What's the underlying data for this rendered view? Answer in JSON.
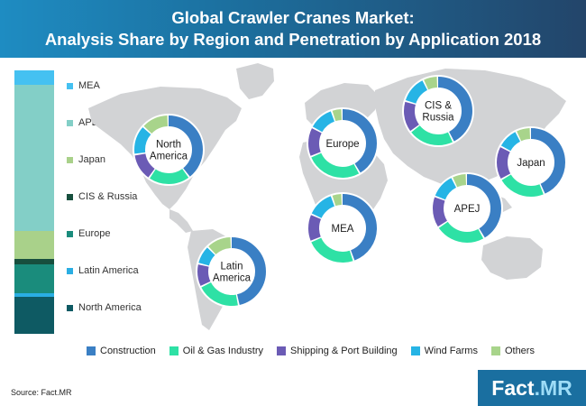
{
  "title_line1": "Global Crawler Cranes Market:",
  "title_line2": "Analysis Share by Region and Penetration by Application 2018",
  "source": "Source: Fact.MR",
  "logo": {
    "part1": "Fact",
    "part2": ".MR"
  },
  "colors": {
    "header_start": "#1e8cc2",
    "header_end": "#23456a",
    "map": "#d2d3d5"
  },
  "chart_data": [
    {
      "type": "bar",
      "stacked": true,
      "orientation": "vertical",
      "categories": [
        "MEA",
        "APEJ",
        "Japan",
        "CIS & Russia",
        "Europe",
        "Latin America",
        "North America"
      ],
      "values": [
        5.5,
        55.5,
        10.5,
        2,
        11,
        1.5,
        14
      ],
      "colors": [
        "#45c1f1",
        "#83cfc7",
        "#a9d18a",
        "#174f3e",
        "#1a8c7c",
        "#2aaee3",
        "#0e5a63"
      ],
      "unit": "%"
    },
    {
      "type": "pie",
      "variant": "donut",
      "categories": [
        "Construction",
        "Oil & Gas Industry",
        "Shipping & Port Building",
        "Wind Farms",
        "Others"
      ],
      "colors": [
        "#3a7fc4",
        "#2ee1a5",
        "#6b5bb5",
        "#26b4e5",
        "#a8d48b"
      ],
      "series": [
        {
          "name": "North America",
          "values": [
            40,
            20,
            13,
            14,
            13
          ]
        },
        {
          "name": "Latin America",
          "values": [
            47,
            21,
            11,
            9,
            12
          ]
        },
        {
          "name": "Europe",
          "values": [
            42,
            27,
            14,
            12,
            5
          ]
        },
        {
          "name": "MEA",
          "values": [
            45,
            24,
            13,
            13,
            5
          ]
        },
        {
          "name": "CIS & Russia",
          "values": [
            43,
            22,
            15,
            13,
            7
          ]
        },
        {
          "name": "APEJ",
          "values": [
            42,
            24,
            15,
            12,
            7
          ]
        },
        {
          "name": "Japan",
          "values": [
            44,
            23,
            16,
            10,
            7
          ]
        }
      ]
    }
  ]
}
